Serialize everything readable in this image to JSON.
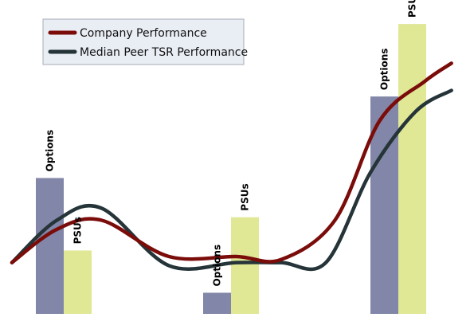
{
  "chart_data": {
    "type": "bar",
    "title": "",
    "xlabel": "",
    "ylabel": "",
    "ylim": [
      0,
      100
    ],
    "grid": false,
    "legend_position": "top-left",
    "categories": [
      "",
      "",
      ""
    ],
    "bar_series": [
      {
        "name": "Options",
        "color": "#8286a8",
        "values": [
          45,
          7,
          72
        ]
      },
      {
        "name": "PSUs",
        "color": "#e0e795",
        "values": [
          21,
          32,
          96
        ]
      }
    ],
    "lines": [
      {
        "name": "Company Performance",
        "color": "#7a0c0a",
        "points": [
          [
            0,
            17
          ],
          [
            10,
            28
          ],
          [
            20,
            31
          ],
          [
            35,
            19
          ],
          [
            50,
            19
          ],
          [
            60,
            18
          ],
          [
            72,
            31
          ],
          [
            82,
            64
          ],
          [
            92,
            77
          ],
          [
            98,
            83
          ]
        ]
      },
      {
        "name": "Median Peer TSR Performance",
        "color": "#253438",
        "points": [
          [
            0,
            17
          ],
          [
            10,
            31
          ],
          [
            20,
            35
          ],
          [
            35,
            16
          ],
          [
            50,
            17
          ],
          [
            60,
            17
          ],
          [
            70,
            17
          ],
          [
            80,
            47
          ],
          [
            90,
            67
          ],
          [
            98,
            74
          ]
        ]
      }
    ]
  }
}
